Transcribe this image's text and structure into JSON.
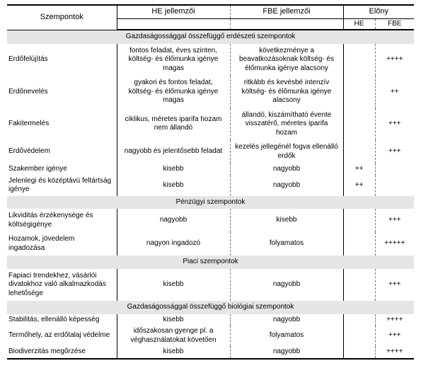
{
  "header": {
    "aspect": "Szempontok",
    "he_feat": "HE jellemzői",
    "fbe_feat": "FBE jellemzői",
    "adv": "Előny",
    "adv_he": "HE",
    "adv_fbe": "FBE"
  },
  "sections": [
    {
      "title": "Gazdaságossággal összefüggő erdészeti szempontok",
      "rows": [
        {
          "aspect": "Erdőfelújítás",
          "he": "fontos feladat, éves szinten, költség- és élőmunka igénye magas",
          "fbe": "következménye a beavatkozásoknak költség- és élőmunka igénye alacsony",
          "adv_he": "",
          "adv_fbe": "++++"
        },
        {
          "aspect": "Erdőnevelés",
          "he": "gyakori és fontos feladat, költség- és élőmunka igénye magas",
          "fbe": "ritkább és kevésbé intenzív költség- és élőmunka igénye alacsony",
          "adv_he": "",
          "adv_fbe": "++"
        },
        {
          "aspect": "Fakitermelés",
          "he": "ciklikus, méretes iparifa hozam nem állandó",
          "fbe": "állandó, kiszámítható évente visszatérő, méretes iparifa hozam",
          "adv_he": "",
          "adv_fbe": "+++"
        },
        {
          "aspect": "Erdővédelem",
          "he": "nagyobb és jelentősebb feladat",
          "fbe": "kezelés jellegénél fogva ellenálló erdők",
          "adv_he": "",
          "adv_fbe": "+++"
        },
        {
          "aspect": "Szakember igénye",
          "he": "kisebb",
          "fbe": "nagyobb",
          "adv_he": "++",
          "adv_fbe": "",
          "tight": true
        },
        {
          "aspect": "Jelenlegi és középtávú feltártság igénye",
          "he": "kisebb",
          "fbe": "nagyobb",
          "adv_he": "++",
          "adv_fbe": "",
          "tight": true
        }
      ]
    },
    {
      "title": "Pénzügyi szempontok",
      "rows": [
        {
          "aspect": "Likviditás érzékenysége és költségigénye",
          "aspect_justify": true,
          "he": "nagyobb",
          "fbe": "kisebb",
          "adv_he": "",
          "adv_fbe": "+++"
        },
        {
          "aspect": "Hozamok, jövedelem ingadozása",
          "aspect_justify": true,
          "he": "nagyon ingadozó",
          "fbe": "folyamatos",
          "adv_he": "",
          "adv_fbe": "+++++"
        }
      ]
    },
    {
      "title": "Piaci szempontok",
      "rows": [
        {
          "aspect": "Fapiaci trendekhez, vásárlói divatokhoz való alkalmazkodás lehetősége",
          "aspect_justify": true,
          "he": "kisebb",
          "fbe": "nagyobb",
          "adv_he": "",
          "adv_fbe": "+++"
        }
      ]
    },
    {
      "title": "Gazdaságossággal összefüggő biológiai szempontok",
      "rows": [
        {
          "aspect": "Stabilitás, ellenálló képesség",
          "he": "kisebb",
          "fbe": "nagyobb",
          "adv_he": "",
          "adv_fbe": "++++",
          "tight": true
        },
        {
          "aspect": "Termőhely, az erdőtalaj védelme",
          "he": "időszakosan gyenge pl. a véghasználatokat követően",
          "fbe": "folyamatos",
          "adv_he": "",
          "adv_fbe": "+++",
          "tight": true
        },
        {
          "aspect": "Biodiverzitás megőrzése",
          "he": "kisebb",
          "fbe": "nagyobb",
          "adv_he": "",
          "adv_fbe": "++++",
          "tight": true,
          "last": true
        }
      ]
    }
  ]
}
